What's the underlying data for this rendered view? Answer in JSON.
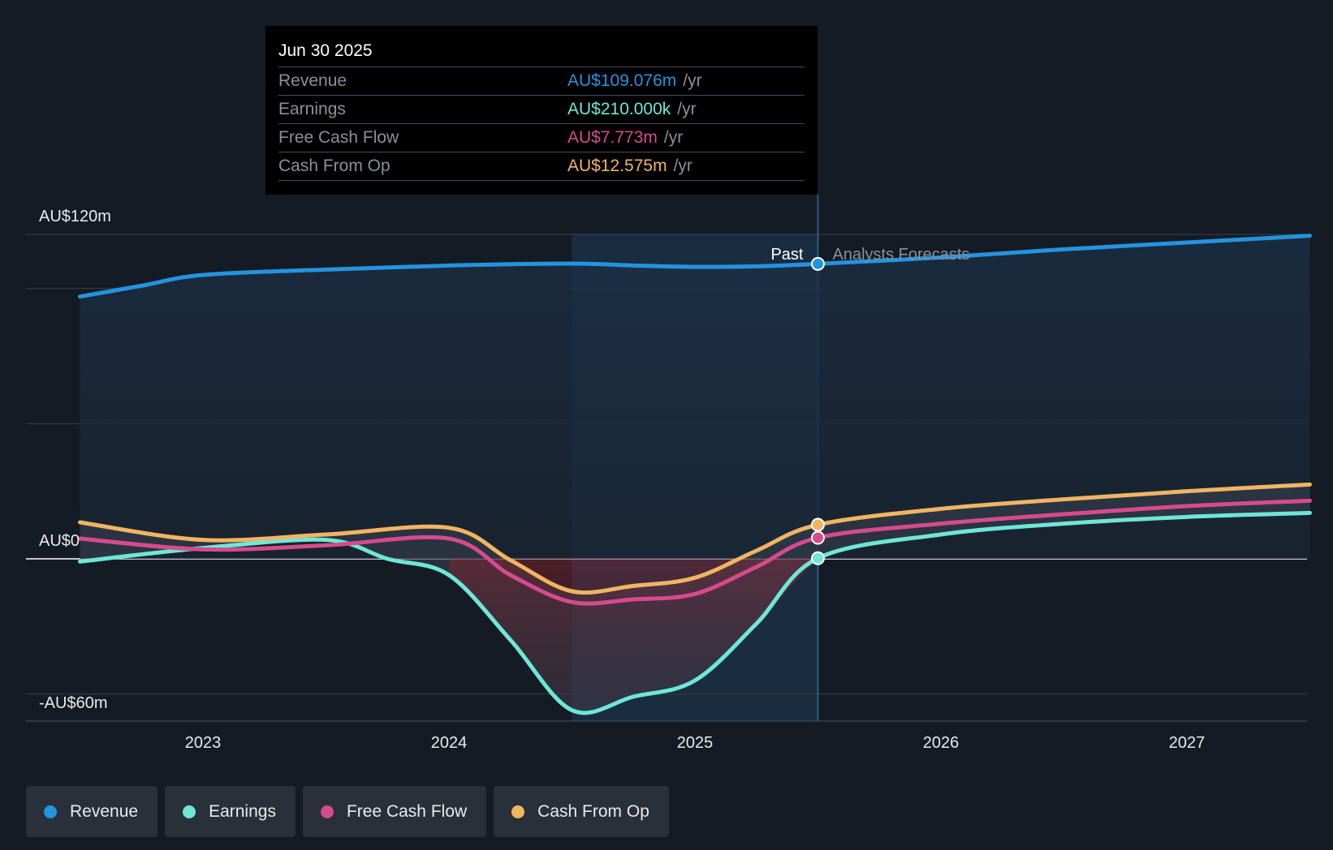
{
  "tooltip": {
    "date": "Jun 30 2025",
    "rows": [
      {
        "label": "Revenue",
        "value": "AU$109.076m",
        "unit": "/yr",
        "color": "#2394df"
      },
      {
        "label": "Earnings",
        "value": "AU$210.000k",
        "unit": "/yr",
        "color": "#6ee7d7"
      },
      {
        "label": "Free Cash Flow",
        "value": "AU$7.773m",
        "unit": "/yr",
        "color": "#d64b8e"
      },
      {
        "label": "Cash From Op",
        "value": "AU$12.575m",
        "unit": "/yr",
        "color": "#f1b561"
      }
    ]
  },
  "legend": [
    {
      "label": "Revenue",
      "color": "#2394df"
    },
    {
      "label": "Earnings",
      "color": "#6ee7d7"
    },
    {
      "label": "Free Cash Flow",
      "color": "#d64b8e"
    },
    {
      "label": "Cash From Op",
      "color": "#f1b561"
    }
  ],
  "chart_data": {
    "type": "line",
    "y_tick_labels": [
      "AU$120m",
      "AU$0",
      "-AU$60m"
    ],
    "x_tick_labels": [
      "2023",
      "2024",
      "2025",
      "2026",
      "2027"
    ],
    "ylim": [
      -60,
      120
    ],
    "divider_date": 2025.5,
    "past_label": "Past",
    "forecast_label": "Analysts Forecasts",
    "series": [
      {
        "name": "Revenue",
        "color": "#2394df",
        "x": [
          2022.5,
          2022.75,
          2023.0,
          2023.5,
          2024.0,
          2024.5,
          2024.75,
          2025.0,
          2025.25,
          2025.5,
          2026.0,
          2026.5,
          2027.0,
          2027.5
        ],
        "values": [
          97,
          101,
          105,
          107,
          108.5,
          109.2,
          108.5,
          108,
          108.2,
          109.1,
          111.5,
          114.5,
          117,
          119.5
        ]
      },
      {
        "name": "Earnings",
        "color": "#6ee7d7",
        "x": [
          2022.5,
          2023.0,
          2023.5,
          2023.75,
          2024.0,
          2024.25,
          2024.5,
          2024.75,
          2025.0,
          2025.25,
          2025.5,
          2026.0,
          2026.5,
          2027.0,
          2027.5
        ],
        "values": [
          -1,
          4,
          7,
          0,
          -6,
          -30,
          -56,
          -51,
          -45,
          -24,
          0.21,
          9,
          13,
          15.5,
          17
        ]
      },
      {
        "name": "Free Cash Flow",
        "color": "#d64b8e",
        "x": [
          2022.5,
          2023.0,
          2023.5,
          2024.0,
          2024.25,
          2024.5,
          2024.75,
          2025.0,
          2025.25,
          2025.5,
          2026.0,
          2026.5,
          2027.0,
          2027.5
        ],
        "values": [
          7.5,
          3.5,
          5,
          7.5,
          -6,
          -16,
          -15,
          -13,
          -3,
          7.8,
          13,
          16.5,
          19.5,
          21.5
        ]
      },
      {
        "name": "Cash From Op",
        "color": "#f1b561",
        "x": [
          2022.5,
          2023.0,
          2023.5,
          2024.0,
          2024.25,
          2024.5,
          2024.75,
          2025.0,
          2025.25,
          2025.5,
          2026.0,
          2026.5,
          2027.0,
          2027.5
        ],
        "values": [
          13.5,
          7,
          9,
          11.5,
          -0.5,
          -12,
          -10,
          -7,
          3,
          12.6,
          18.5,
          22,
          25,
          27.5
        ]
      }
    ]
  }
}
